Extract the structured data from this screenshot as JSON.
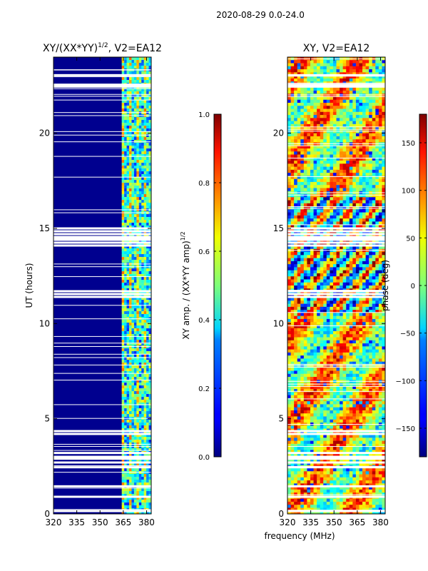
{
  "figure": {
    "suptitle": "2020-08-29 0.0-24.0",
    "shared_xlabel": "frequency (MHz)"
  },
  "chart_data": [
    {
      "type": "heatmap",
      "title": "XY/(XX*YY)^(1/2), V2=EA12",
      "title_main": "XY/(XX*YY)",
      "title_sup": "1/2",
      "title_tail": ", V2=EA12",
      "xlabel": "frequency (MHz)",
      "ylabel": "UT (hours)",
      "xlim": [
        320,
        383
      ],
      "ylim": [
        0,
        24
      ],
      "xticks": [
        320,
        335,
        350,
        365,
        380
      ],
      "yticks": [
        0,
        5,
        10,
        15,
        20
      ],
      "colormap": "jet",
      "color_range": [
        0.0,
        1.0
      ],
      "colorbar": {
        "label": "XY amp. / (XX*YY amp)^(1/2)",
        "label_main": "XY amp. / (XX*YY amp)",
        "label_sup": "1/2",
        "ticks": [
          0.0,
          0.2,
          0.4,
          0.6,
          0.8,
          1.0
        ],
        "tick_labels": [
          "0.0",
          "0.2",
          "0.4",
          "0.6",
          "0.8",
          "1.0"
        ]
      },
      "band_start_mhz": 364,
      "gap_hours": [
        0.15,
        0.9,
        1.45,
        2.45,
        2.7,
        2.9,
        3.0,
        3.2,
        4.2,
        4.35,
        11.4,
        11.55,
        11.7,
        14.1,
        14.25,
        14.4,
        14.55,
        14.7,
        14.85,
        15.0,
        22.45,
        22.55,
        23.05
      ]
    },
    {
      "type": "heatmap",
      "title": "XY, V2=EA12",
      "xlabel": "frequency (MHz)",
      "ylabel": "",
      "xlim": [
        320,
        383
      ],
      "ylim": [
        0,
        24
      ],
      "xticks": [
        320,
        335,
        350,
        365,
        380
      ],
      "yticks": [
        0,
        5,
        10,
        15,
        20
      ],
      "colormap": "jet",
      "color_range": [
        -180,
        180
      ],
      "colorbar": {
        "label": "phase (deg)",
        "ticks": [
          -150,
          -100,
          -50,
          0,
          50,
          100,
          150
        ],
        "tick_labels": [
          "−150",
          "−100",
          "−50",
          "0",
          "50",
          "100",
          "150"
        ]
      },
      "gap_hours": [
        0.15,
        0.9,
        1.45,
        2.45,
        2.7,
        2.9,
        3.0,
        3.2,
        4.2,
        4.35,
        11.4,
        11.55,
        11.7,
        14.1,
        14.25,
        14.4,
        14.55,
        14.7,
        14.85,
        15.0,
        22.45,
        22.55,
        23.05
      ]
    }
  ]
}
